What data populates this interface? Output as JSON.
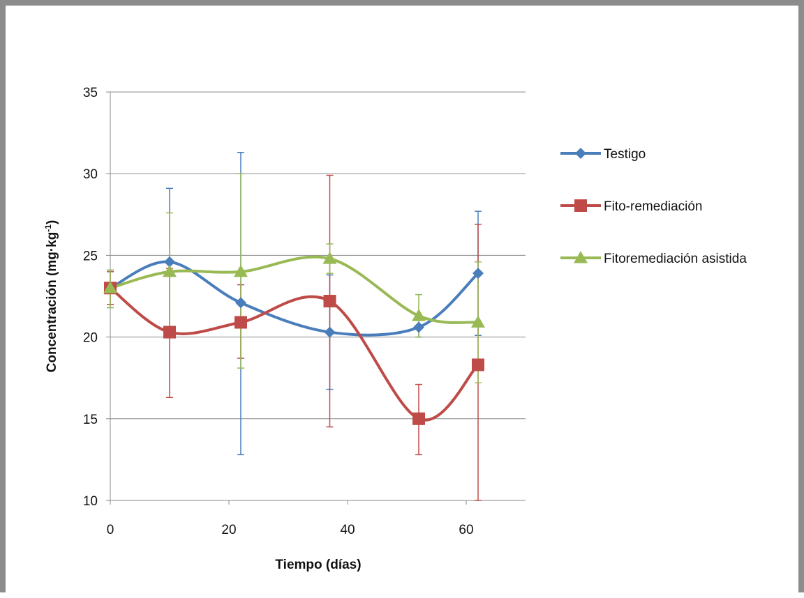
{
  "chart_data": {
    "type": "line",
    "title": "",
    "xlabel": "Tiempo (días)",
    "ylabel_main": "Concentración (mg·kg",
    "ylabel_sup": "-1",
    "ylabel_tail": ")",
    "xlim": [
      0,
      70
    ],
    "ylim": [
      10,
      35
    ],
    "xticks": [
      0,
      20,
      40,
      60
    ],
    "yticks": [
      10,
      15,
      20,
      25,
      30,
      35
    ],
    "grid": "horizontal",
    "legend_position": "right",
    "smooth": true,
    "series": [
      {
        "name": "Testigo",
        "color": "#4a7ebb",
        "marker": "diamond",
        "x": [
          0,
          10,
          22,
          37,
          52,
          62
        ],
        "y": [
          23.0,
          24.6,
          22.1,
          20.3,
          20.6,
          23.9
        ],
        "err_low": [
          21.8,
          20.0,
          12.8,
          16.8,
          20.0,
          20.1
        ],
        "err_high": [
          24.1,
          29.1,
          31.3,
          23.8,
          21.2,
          27.7
        ]
      },
      {
        "name": "Fito-remediación",
        "color": "#be4b48",
        "marker": "square",
        "x": [
          0,
          10,
          22,
          37,
          52,
          62
        ],
        "y": [
          23.0,
          20.3,
          20.9,
          22.2,
          15.0,
          18.3
        ],
        "err_low": [
          22.0,
          16.3,
          18.7,
          14.5,
          12.8,
          10.0
        ],
        "err_high": [
          24.0,
          24.2,
          23.2,
          29.9,
          17.1,
          26.9
        ]
      },
      {
        "name": "Fitoremediación asistida",
        "color": "#98b954",
        "marker": "triangle",
        "x": [
          0,
          10,
          22,
          37,
          52,
          62
        ],
        "y": [
          23.0,
          24.0,
          24.0,
          24.8,
          21.3,
          20.9
        ],
        "err_low": [
          21.8,
          20.3,
          18.1,
          23.9,
          20.0,
          17.2
        ],
        "err_high": [
          24.1,
          27.6,
          30.0,
          25.7,
          22.6,
          24.6
        ]
      }
    ]
  }
}
